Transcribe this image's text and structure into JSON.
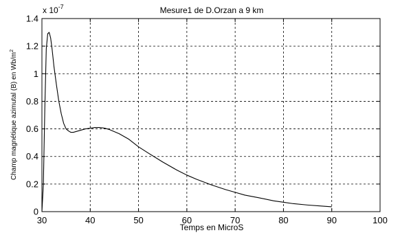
{
  "chart_data": {
    "type": "line",
    "title": "Mesure1  de D.Orzan a 9 km",
    "xlabel": "Temps en MicroS",
    "ylabel": "Champ magnétique azimutal (B) en Wb/m²",
    "ylabel_main": "Champ magnétique azimutal (B) en Wb/m",
    "ylabel_sup": "2",
    "y_multiplier_base": "x 10",
    "y_multiplier_exp": "-7",
    "xlim": [
      30,
      100
    ],
    "ylim": [
      0,
      1.4
    ],
    "x_ticks": [
      "30",
      "40",
      "50",
      "60",
      "70",
      "80",
      "90",
      "100"
    ],
    "y_ticks": [
      "0",
      "0.2",
      "0.4",
      "0.6",
      "0.8",
      "1",
      "1.2",
      "1.4"
    ],
    "grid": true,
    "series": [
      {
        "color": "#000000",
        "x": [
          30,
          30.3,
          30.6,
          30.9,
          31.2,
          31.5,
          31.8,
          32.1,
          32.5,
          33,
          33.5,
          34,
          34.5,
          35,
          35.5,
          36,
          36.5,
          37,
          37.5,
          38,
          39,
          40,
          41,
          42,
          43,
          44,
          45,
          46,
          47,
          48,
          50,
          52,
          55,
          58,
          60,
          62,
          65,
          68,
          70,
          72,
          75,
          78,
          80,
          82,
          85,
          88,
          90
        ],
        "y": [
          0,
          0.2,
          0.75,
          1.18,
          1.29,
          1.3,
          1.26,
          1.18,
          1.05,
          0.92,
          0.8,
          0.71,
          0.64,
          0.6,
          0.585,
          0.575,
          0.575,
          0.58,
          0.585,
          0.59,
          0.6,
          0.605,
          0.61,
          0.61,
          0.605,
          0.595,
          0.58,
          0.565,
          0.545,
          0.525,
          0.47,
          0.425,
          0.36,
          0.3,
          0.265,
          0.235,
          0.195,
          0.16,
          0.14,
          0.12,
          0.1,
          0.078,
          0.068,
          0.058,
          0.048,
          0.04,
          0.035
        ]
      }
    ]
  }
}
